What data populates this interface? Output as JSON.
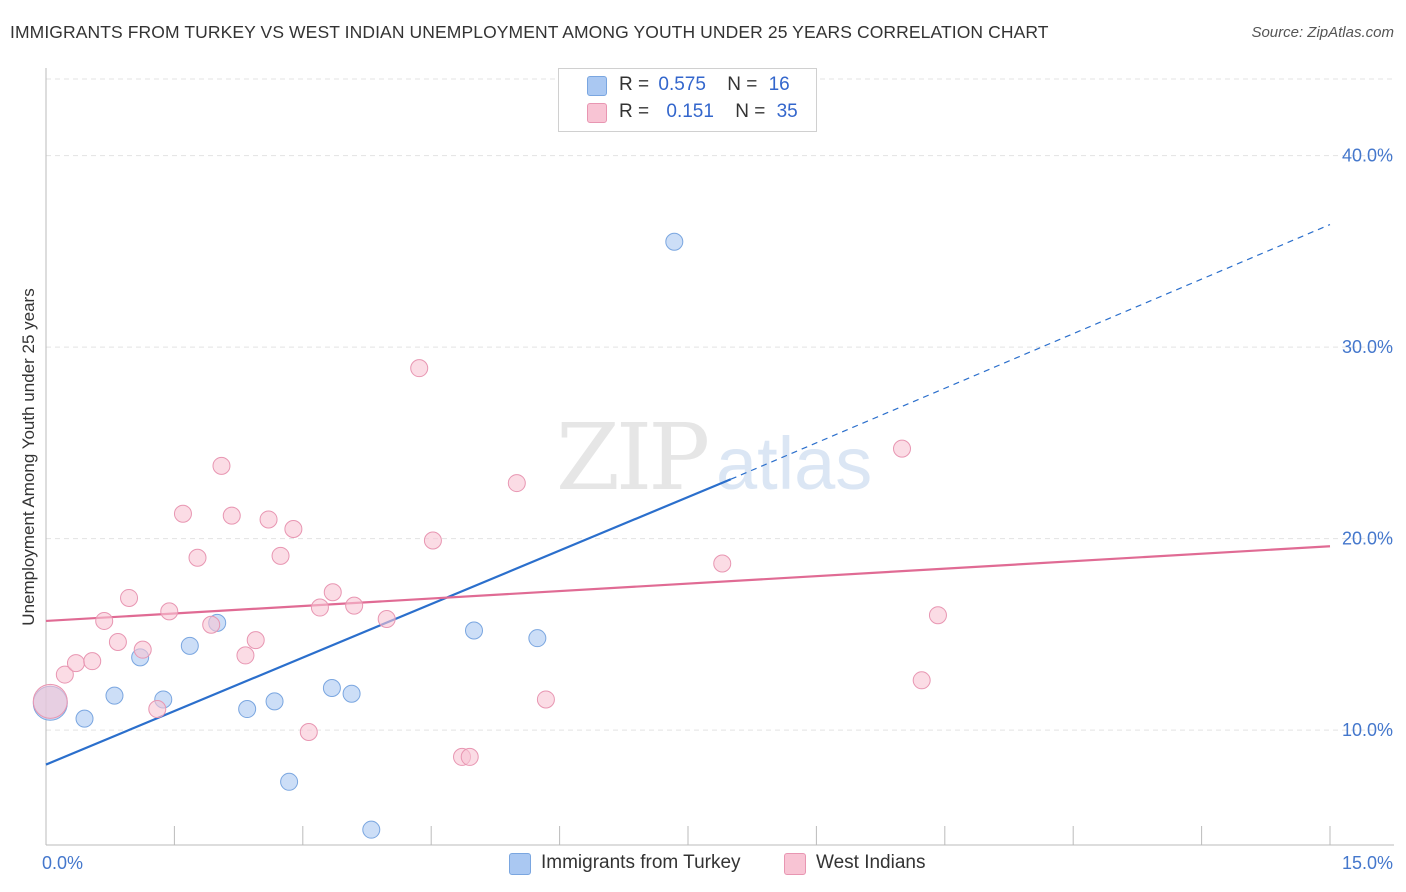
{
  "title": "IMMIGRANTS FROM TURKEY VS WEST INDIAN UNEMPLOYMENT AMONG YOUTH UNDER 25 YEARS CORRELATION CHART",
  "source": "Source: ZipAtlas.com",
  "watermark": {
    "zip": "ZIP",
    "atlas": "atlas"
  },
  "legend": {
    "rows": [
      {
        "r_label": "R =",
        "r_value": "0.575",
        "n_label": "N =",
        "n_value": "16",
        "color": "#aac8f2",
        "border": "#7aa6e0"
      },
      {
        "r_label": "R =",
        "r_value": "0.151",
        "n_label": "N =",
        "n_value": "35",
        "color": "#f8c4d4",
        "border": "#e896b2"
      }
    ]
  },
  "chart_data": {
    "type": "scatter",
    "xlabel": "",
    "ylabel": "Unemployment Among Youth under 25 years",
    "xlim": [
      0,
      15
    ],
    "ylim": [
      4,
      44
    ],
    "x_tick_labels": [
      "0.0%",
      "15.0%"
    ],
    "y_ticks": [
      10,
      20,
      30,
      40
    ],
    "y_tick_labels": [
      "10.0%",
      "20.0%",
      "30.0%",
      "40.0%"
    ],
    "grid": true,
    "legend_position": "top-center",
    "series": [
      {
        "name": "Immigrants from Turkey",
        "color": "#aac8f2",
        "stroke": "#7aa6e0",
        "line_color": "#2b6fcc",
        "points": [
          {
            "x": 0.05,
            "y": 11.4,
            "big": true
          },
          {
            "x": 0.45,
            "y": 10.6
          },
          {
            "x": 0.8,
            "y": 11.8
          },
          {
            "x": 1.1,
            "y": 13.8
          },
          {
            "x": 1.37,
            "y": 11.6
          },
          {
            "x": 1.68,
            "y": 14.4
          },
          {
            "x": 2.0,
            "y": 15.6
          },
          {
            "x": 2.35,
            "y": 11.1
          },
          {
            "x": 2.67,
            "y": 11.5
          },
          {
            "x": 2.84,
            "y": 7.3
          },
          {
            "x": 3.34,
            "y": 12.2
          },
          {
            "x": 3.57,
            "y": 11.9
          },
          {
            "x": 3.8,
            "y": 4.8
          },
          {
            "x": 5.0,
            "y": 15.2
          },
          {
            "x": 5.74,
            "y": 14.8
          },
          {
            "x": 7.34,
            "y": 35.5
          }
        ],
        "trend": {
          "x_start": 0.0,
          "y_start": 8.2,
          "x_solid_end": 8.0,
          "y_solid_end": 23.1,
          "x_end": 15.0,
          "y_end": 36.4
        }
      },
      {
        "name": "West Indians",
        "color": "#f8c4d4",
        "stroke": "#e896b2",
        "line_color": "#e06b94",
        "points": [
          {
            "x": 0.05,
            "y": 11.5,
            "big": true
          },
          {
            "x": 0.22,
            "y": 12.9
          },
          {
            "x": 0.35,
            "y": 13.5
          },
          {
            "x": 0.54,
            "y": 13.6
          },
          {
            "x": 0.68,
            "y": 15.7
          },
          {
            "x": 0.84,
            "y": 14.6
          },
          {
            "x": 0.97,
            "y": 16.9
          },
          {
            "x": 1.13,
            "y": 14.2
          },
          {
            "x": 1.3,
            "y": 11.1
          },
          {
            "x": 1.44,
            "y": 16.2
          },
          {
            "x": 1.6,
            "y": 21.3
          },
          {
            "x": 1.77,
            "y": 19.0
          },
          {
            "x": 1.93,
            "y": 15.5
          },
          {
            "x": 2.05,
            "y": 23.8
          },
          {
            "x": 2.17,
            "y": 21.2
          },
          {
            "x": 2.33,
            "y": 13.9
          },
          {
            "x": 2.45,
            "y": 14.7
          },
          {
            "x": 2.6,
            "y": 21.0
          },
          {
            "x": 2.74,
            "y": 19.1
          },
          {
            "x": 2.89,
            "y": 20.5
          },
          {
            "x": 3.07,
            "y": 9.9
          },
          {
            "x": 3.2,
            "y": 16.4
          },
          {
            "x": 3.35,
            "y": 17.2
          },
          {
            "x": 3.6,
            "y": 16.5
          },
          {
            "x": 3.98,
            "y": 15.8
          },
          {
            "x": 4.36,
            "y": 28.9
          },
          {
            "x": 4.52,
            "y": 19.9
          },
          {
            "x": 4.86,
            "y": 8.6
          },
          {
            "x": 4.95,
            "y": 8.6
          },
          {
            "x": 5.5,
            "y": 22.9
          },
          {
            "x": 5.84,
            "y": 11.6
          },
          {
            "x": 7.9,
            "y": 18.7
          },
          {
            "x": 10.0,
            "y": 24.7
          },
          {
            "x": 10.23,
            "y": 12.6
          },
          {
            "x": 10.42,
            "y": 16.0
          }
        ],
        "trend": {
          "x_start": 0.0,
          "y_start": 15.7,
          "x_end": 15.0,
          "y_end": 19.6
        }
      }
    ]
  }
}
